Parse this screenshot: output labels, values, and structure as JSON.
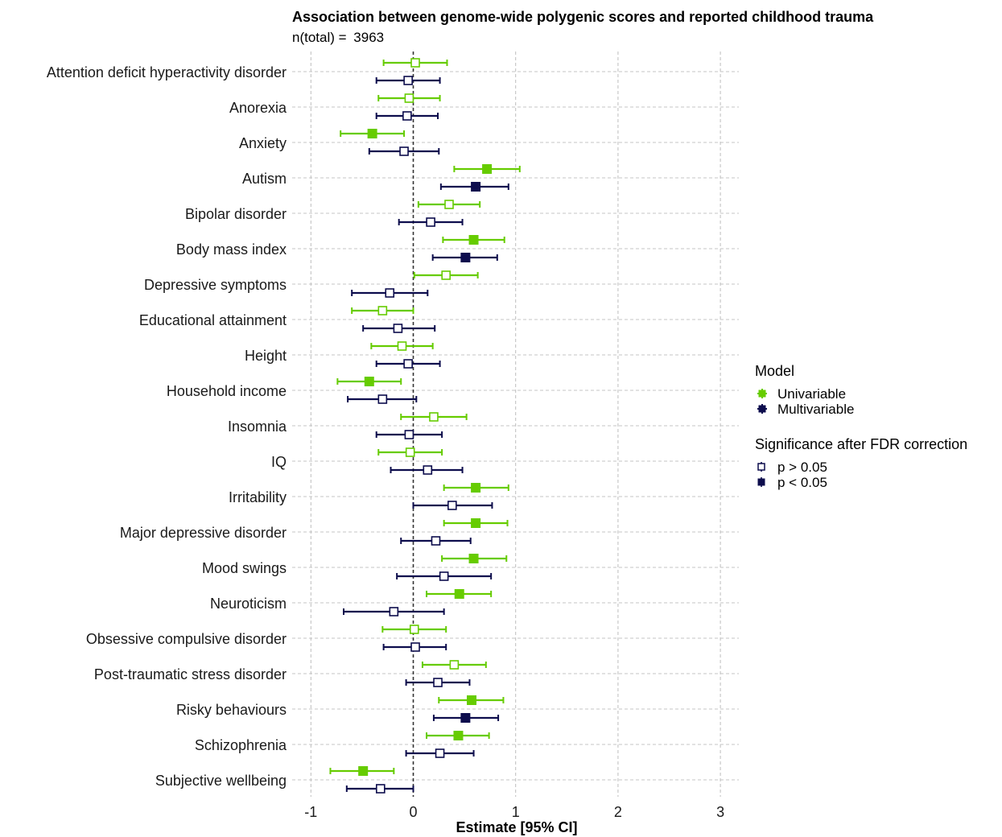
{
  "chart_data": {
    "type": "forest",
    "title": "Association between genome-wide polygenic scores and reported childhood trauma",
    "subtitle_label": "n(total) = ",
    "subtitle_value": "3963",
    "xlabel": "Estimate [95% CI]",
    "ylabel": "",
    "xlim": [
      -1.0,
      3.2
    ],
    "xticks": [
      -1,
      0,
      1,
      2,
      3
    ],
    "grid": true,
    "reference_line": 0,
    "legend_position": "right",
    "colors": {
      "Univariable": "#66cc00",
      "Multivariable": "#0d0d4d"
    },
    "categories": [
      "Attention deficit hyperactivity disorder",
      "Anorexia",
      "Anxiety",
      "Autism",
      "Bipolar disorder",
      "Body mass index",
      "Depressive symptoms",
      "Educational attainment",
      "Height",
      "Household income",
      "Insomnia",
      "IQ",
      "Irritability",
      "Major depressive disorder",
      "Mood swings",
      "Neuroticism",
      "Obsessive compulsive disorder",
      "Post-traumatic stress disorder",
      "Risky behaviours",
      "Schizophrenia",
      "Subjective wellbeing"
    ],
    "series": [
      {
        "name": "Univariable",
        "estimate": [
          0.02,
          -0.04,
          -0.4,
          0.72,
          0.35,
          0.59,
          0.32,
          -0.3,
          -0.11,
          -0.43,
          0.2,
          -0.03,
          0.61,
          0.61,
          0.59,
          0.45,
          0.01,
          0.4,
          0.57,
          0.44,
          -0.49
        ],
        "lower": [
          -0.29,
          -0.34,
          -0.71,
          0.4,
          0.05,
          0.29,
          0.01,
          -0.6,
          -0.41,
          -0.74,
          -0.12,
          -0.34,
          0.3,
          0.3,
          0.28,
          0.13,
          -0.3,
          0.09,
          0.25,
          0.13,
          -0.81
        ],
        "upper": [
          0.33,
          0.26,
          -0.09,
          1.04,
          0.65,
          0.89,
          0.63,
          0.0,
          0.19,
          -0.12,
          0.52,
          0.28,
          0.93,
          0.92,
          0.91,
          0.76,
          0.32,
          0.71,
          0.88,
          0.74,
          -0.19
        ],
        "significant": [
          false,
          false,
          true,
          true,
          false,
          true,
          false,
          false,
          false,
          true,
          false,
          false,
          true,
          true,
          true,
          true,
          false,
          false,
          true,
          true,
          true
        ]
      },
      {
        "name": "Multivariable",
        "estimate": [
          -0.05,
          -0.06,
          -0.09,
          0.61,
          0.17,
          0.51,
          -0.23,
          -0.15,
          -0.05,
          -0.3,
          -0.04,
          0.14,
          0.38,
          0.22,
          0.3,
          -0.19,
          0.02,
          0.24,
          0.51,
          0.26,
          -0.32
        ],
        "lower": [
          -0.36,
          -0.36,
          -0.43,
          0.27,
          -0.14,
          0.19,
          -0.6,
          -0.49,
          -0.36,
          -0.64,
          -0.36,
          -0.22,
          0.0,
          -0.12,
          -0.16,
          -0.68,
          -0.29,
          -0.07,
          0.2,
          -0.07,
          -0.65
        ],
        "upper": [
          0.26,
          0.24,
          0.25,
          0.93,
          0.48,
          0.82,
          0.14,
          0.21,
          0.26,
          0.03,
          0.28,
          0.48,
          0.77,
          0.56,
          0.76,
          0.3,
          0.32,
          0.55,
          0.83,
          0.59,
          0.0
        ],
        "significant": [
          false,
          false,
          false,
          true,
          false,
          true,
          false,
          false,
          false,
          false,
          false,
          false,
          false,
          false,
          false,
          false,
          false,
          false,
          true,
          false,
          false
        ]
      }
    ],
    "legend": {
      "model_title": "Model",
      "model_items": [
        "Univariable",
        "Multivariable"
      ],
      "sig_title": "Significance after FDR correction",
      "sig_items": [
        "p > 0.05",
        "p < 0.05"
      ]
    }
  }
}
